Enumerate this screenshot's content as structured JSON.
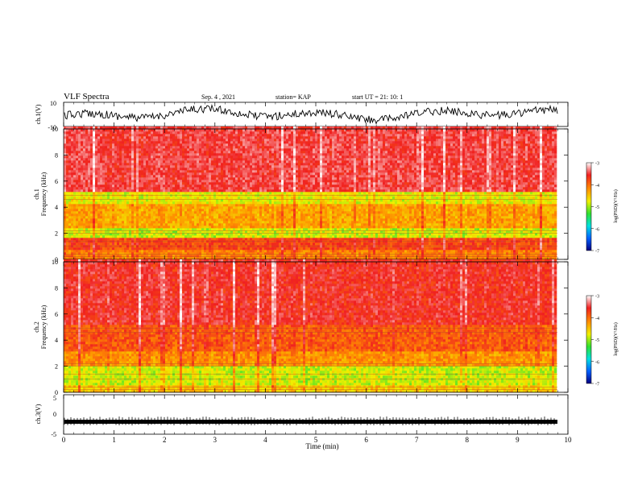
{
  "header": {
    "title": "VLF Spectra",
    "date": "Sep. 4 , 2021",
    "station": "station= KAP",
    "start": "start  UT =   21: 10: 1"
  },
  "chart_data": [
    {
      "type": "line",
      "ylabel": "ch.1(V)",
      "ylim": [
        -10,
        10
      ],
      "yticks": [
        "10",
        "-10"
      ],
      "xlim": [
        0,
        10
      ],
      "series": [
        {
          "values_description_free": true,
          "trace_color": "#000000"
        }
      ]
    },
    {
      "type": "heatmap",
      "ylabel_top": "ch.1",
      "ylabel": "Frequency  (kHz)",
      "ylim": [
        0,
        10
      ],
      "yticks": [
        "0",
        "2",
        "4",
        "6",
        "8",
        "10"
      ],
      "xlim": [
        0,
        10
      ],
      "colorbar": {
        "label": "log(PSD)(V²/Hz)",
        "range": [
          -7,
          -3
        ],
        "ticks": [
          "-3",
          "-4",
          "-5",
          "-6",
          "-7"
        ],
        "colors": [
          "#000080",
          "#0060ff",
          "#00e0e0",
          "#30e030",
          "#f0f000",
          "#ff9000",
          "#f02020",
          "#ffffff"
        ]
      },
      "bands_khz": [
        {
          "from": 0,
          "to": 0.6,
          "level": -4.2
        },
        {
          "from": 0.6,
          "to": 1.6,
          "level": -3.9
        },
        {
          "from": 1.6,
          "to": 2.4,
          "level": -4.9
        },
        {
          "from": 2.4,
          "to": 4.2,
          "level": -4.4
        },
        {
          "from": 4.2,
          "to": 5.0,
          "level": -4.8
        },
        {
          "from": 5.0,
          "to": 10.0,
          "level": -3.6
        }
      ]
    },
    {
      "type": "heatmap",
      "ylabel_top": "ch.2",
      "ylabel": "Frequency  (kHz)",
      "ylim": [
        0,
        10
      ],
      "yticks": [
        "0",
        "2",
        "4",
        "6",
        "8",
        "10"
      ],
      "xlim": [
        0,
        10
      ],
      "colorbar": {
        "label": "log(PSD)(V²/Hz)",
        "range": [
          -7,
          -3
        ],
        "ticks": [
          "-3",
          "-4",
          "-5",
          "-6",
          "-7"
        ],
        "colors": [
          "#000080",
          "#0060ff",
          "#00e0e0",
          "#30e030",
          "#f0f000",
          "#ff9000",
          "#f02020",
          "#ffffff"
        ]
      },
      "bands_khz": [
        {
          "from": 0,
          "to": 0.5,
          "level": -4.6
        },
        {
          "from": 0.5,
          "to": 2.0,
          "level": -4.9
        },
        {
          "from": 2.0,
          "to": 3.0,
          "level": -4.3
        },
        {
          "from": 3.0,
          "to": 5.0,
          "level": -4.0
        },
        {
          "from": 5.0,
          "to": 10.0,
          "level": -3.7
        }
      ]
    },
    {
      "type": "line",
      "ylabel": "ch.3(V)",
      "ylim": [
        -5,
        5
      ],
      "yticks": [
        "5",
        "0",
        "-5"
      ],
      "xlim": [
        0,
        10
      ],
      "level": -2,
      "series": [
        {
          "trace_color": "#000000"
        }
      ]
    }
  ],
  "xaxis": {
    "label": "Time  (min)",
    "ticks": [
      "0",
      "1",
      "2",
      "3",
      "4",
      "5",
      "6",
      "7",
      "8",
      "9",
      "10"
    ]
  }
}
